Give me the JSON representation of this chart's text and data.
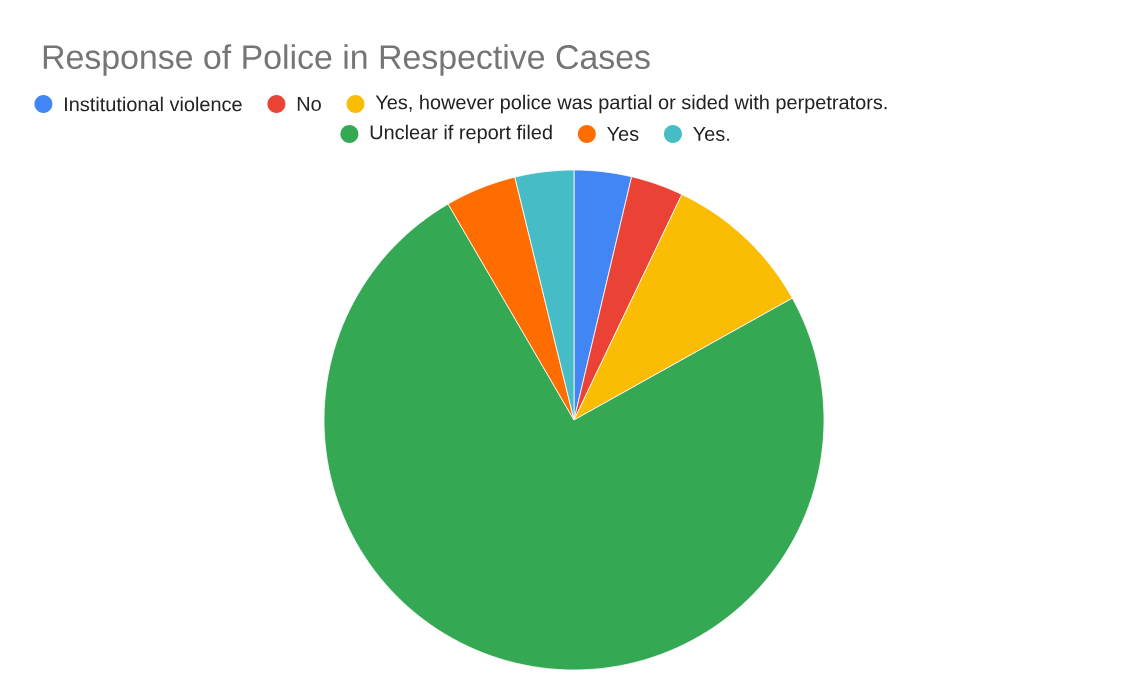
{
  "chart_data": {
    "type": "pie",
    "title": "Response of Police in Respective Cases",
    "legend": "top",
    "categories": [
      "Institutional violence",
      "No",
      "Yes, however police was partial or sided with perpetrators.",
      "Unclear if  report filed",
      "Yes",
      "Yes."
    ],
    "values": [
      3.7,
      3.4,
      9.8,
      74.7,
      4.6,
      3.8
    ],
    "colors": [
      "#4285f4",
      "#ea4335",
      "#fbbc04",
      "#34a853",
      "#ff6d01",
      "#46bdc6"
    ]
  }
}
